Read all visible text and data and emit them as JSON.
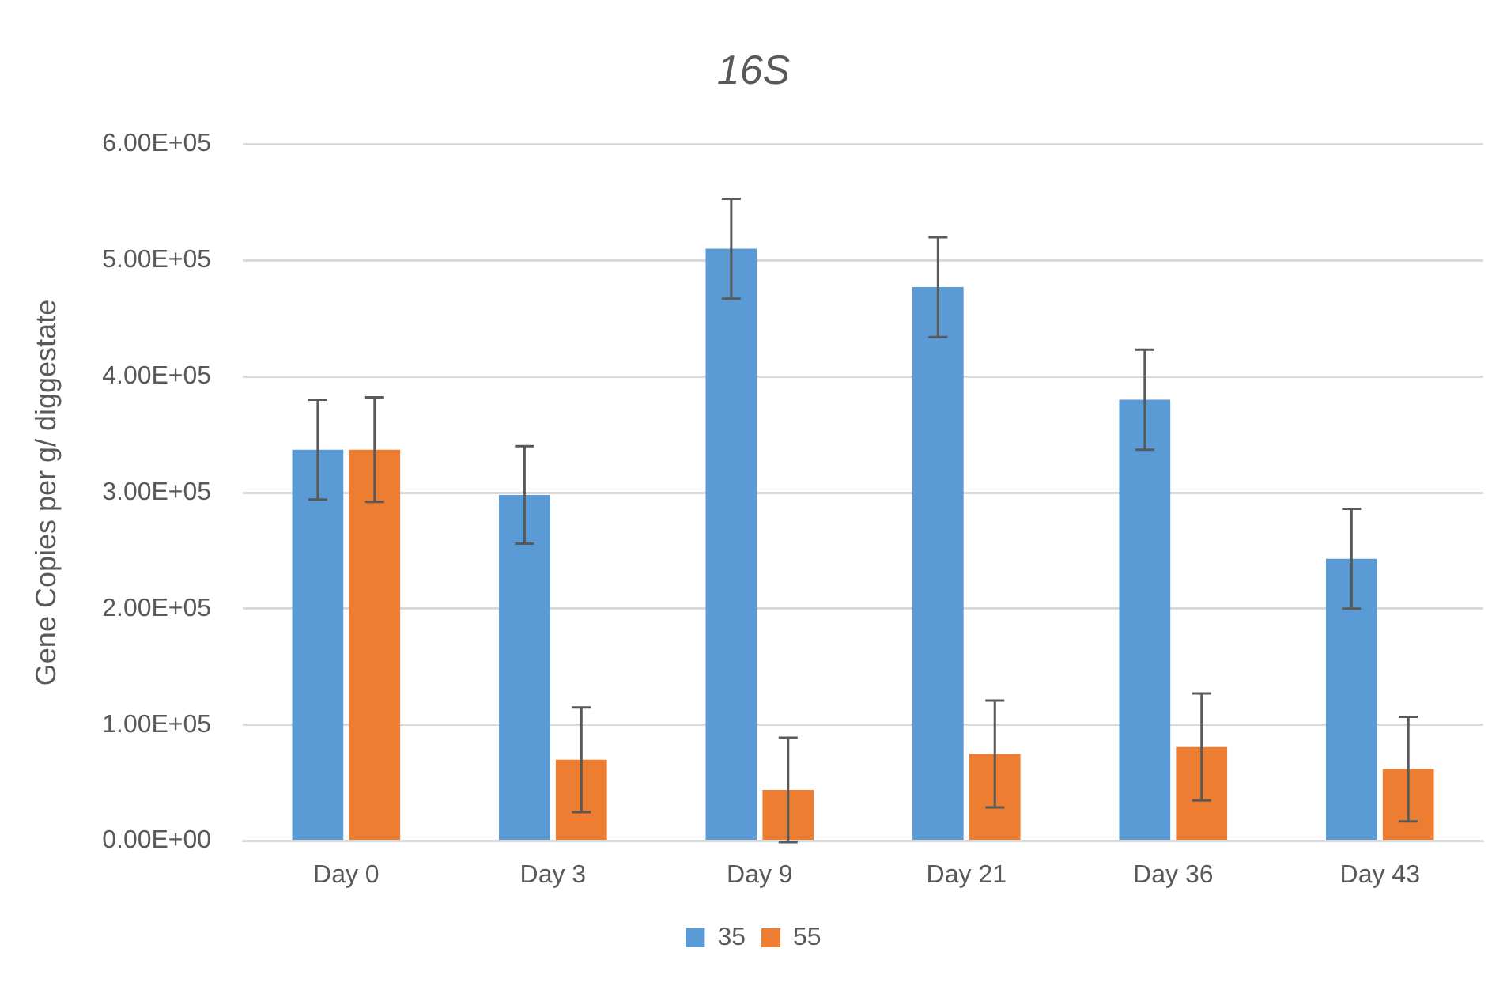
{
  "chart_data": {
    "type": "bar",
    "title": "16S",
    "ylabel": "Gene Copies per g/ diggestate",
    "categories": [
      "Day 0",
      "Day 3",
      "Day 9",
      "Day 21",
      "Day 36",
      "Day 43"
    ],
    "series": [
      {
        "name": "35",
        "color": "#5b9bd5",
        "values": [
          337000,
          298000,
          510000,
          477000,
          380000,
          243000
        ],
        "errors": [
          43000,
          42000,
          43000,
          43000,
          43000,
          43000
        ]
      },
      {
        "name": "55",
        "color": "#ed7d31",
        "values": [
          337000,
          70000,
          44000,
          75000,
          81000,
          62000
        ],
        "errors": [
          45000,
          45000,
          45000,
          46000,
          46000,
          45000
        ]
      }
    ],
    "ylim": [
      0,
      600000
    ],
    "yticks": [
      {
        "value": 0,
        "label": "0.00E+00"
      },
      {
        "value": 100000,
        "label": "1.00E+05"
      },
      {
        "value": 200000,
        "label": "2.00E+05"
      },
      {
        "value": 300000,
        "label": "3.00E+05"
      },
      {
        "value": 400000,
        "label": "4.00E+05"
      },
      {
        "value": 500000,
        "label": "5.00E+05"
      },
      {
        "value": 600000,
        "label": "6.00E+05"
      }
    ],
    "grid": "y",
    "legend": "bottom"
  }
}
